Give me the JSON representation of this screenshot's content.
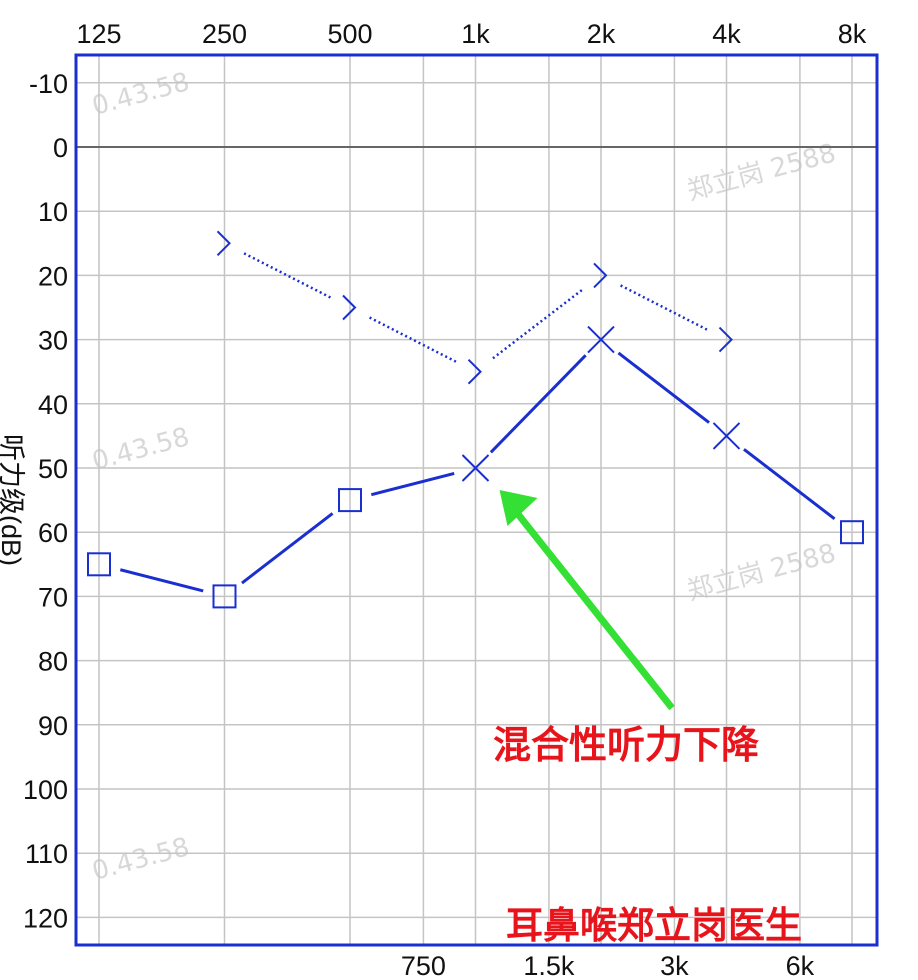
{
  "chart_data": {
    "type": "line",
    "title": "",
    "xlabel": "",
    "ylabel": "听力级(dB)",
    "x_scale": "log2",
    "top_tick_labels": [
      "125",
      "250",
      "500",
      "1k",
      "2k",
      "4k",
      "8k"
    ],
    "top_tick_values": [
      125,
      250,
      500,
      1000,
      2000,
      4000,
      8000
    ],
    "bottom_tick_labels": [
      "750",
      "1.5k",
      "3k",
      "6k"
    ],
    "bottom_tick_values": [
      750,
      1500,
      3000,
      6000
    ],
    "y_ticks": [
      -10,
      0,
      10,
      20,
      30,
      40,
      50,
      60,
      70,
      80,
      90,
      100,
      110,
      120
    ],
    "ylim": [
      -15,
      125
    ],
    "y_inverted": true,
    "grid": true,
    "series": [
      {
        "marker": "square",
        "style": "solid",
        "color": "#1a2fd0",
        "points": [
          [
            125,
            65
          ],
          [
            250,
            70
          ],
          [
            500,
            55
          ],
          [
            8000,
            60
          ]
        ]
      },
      {
        "marker": "x",
        "style": "solid",
        "color": "#1a2fd0",
        "points": [
          [
            1000,
            50
          ],
          [
            2000,
            30
          ],
          [
            4000,
            45
          ]
        ]
      },
      {
        "marker": "bracket-right",
        "style": "dotted",
        "color": "#1a2fd0",
        "points": [
          [
            250,
            15
          ],
          [
            500,
            25
          ],
          [
            1000,
            35
          ],
          [
            2000,
            20
          ],
          [
            4000,
            30
          ]
        ]
      }
    ],
    "air_line_order": [
      [
        125,
        65
      ],
      [
        250,
        70
      ],
      [
        500,
        55
      ],
      [
        1000,
        50
      ],
      [
        2000,
        30
      ],
      [
        4000,
        45
      ],
      [
        8000,
        60
      ]
    ],
    "annotations": [
      {
        "text": "混合性听力下降",
        "color": "#e8141c",
        "arrow_color": "#33e033",
        "points_to": [
          1000,
          50
        ]
      },
      {
        "text": "耳鼻喉郑立岗医生",
        "color": "#e8141c"
      }
    ],
    "watermarks": [
      "郑立岗 2588",
      "0.43.58"
    ]
  }
}
